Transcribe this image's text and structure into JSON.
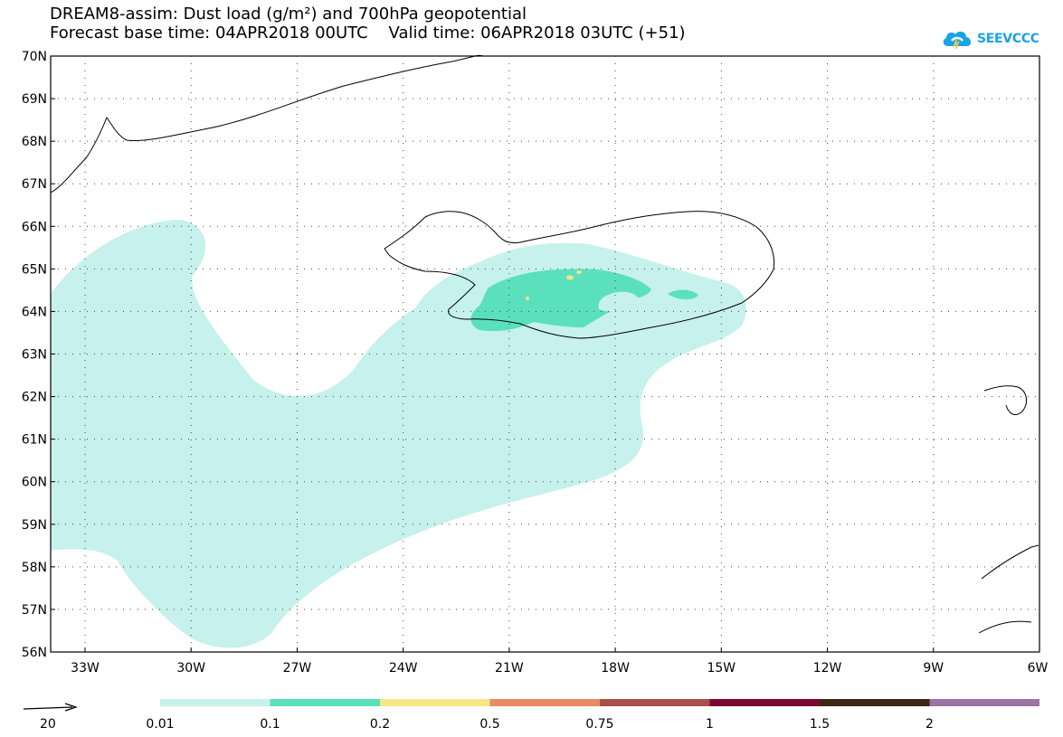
{
  "header": {
    "title_line1": "DREAM8-assim: Dust load (g/m²) and 700hPa geopotential",
    "title_line2": "Forecast base time: 04APR2018 00UTC    Valid time: 06APR2018 03UTC (+51)",
    "logo_text": "SEEVCCC"
  },
  "map": {
    "lat_labels": [
      "70N",
      "69N",
      "68N",
      "67N",
      "66N",
      "65N",
      "64N",
      "63N",
      "62N",
      "61N",
      "60N",
      "59N",
      "58N",
      "57N",
      "56N"
    ],
    "lon_labels": [
      "33W",
      "30W",
      "27W",
      "24W",
      "21W",
      "18W",
      "15W",
      "12W",
      "9W",
      "6W"
    ]
  },
  "legend": {
    "vector_ref_label": "20",
    "thresholds": [
      "0.01",
      "0.1",
      "0.2",
      "0.5",
      "0.75",
      "1",
      "1.5",
      "2"
    ],
    "colors": [
      "#c6f1ec",
      "#5ae0bd",
      "#f6e685",
      "#e88b66",
      "#a8504a",
      "#7a0830",
      "#3d2615",
      "#9b73a4"
    ]
  }
}
